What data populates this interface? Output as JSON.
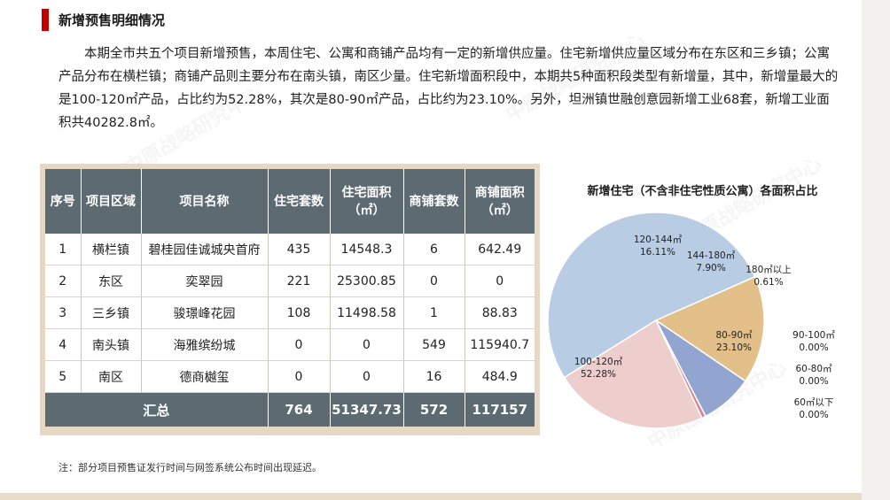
{
  "section": {
    "title": "新增预售明细情况"
  },
  "intro": "本期全市共五个项目新增预售，本周住宅、公寓和商铺产品均有一定的新增供应量。住宅新增供应量区域分布在东区和三乡镇；公寓产品分布在横栏镇；商铺产品则主要分布在南头镇，南区少量。住宅新增面积段中，本期共5种面积段类型有新增量，其中，新增量最大的是100-120㎡产品，占比约为52.28%，其次是80-90㎡产品，占比约为23.10%。另外，坦洲镇世融创意园新增工业68套，新增工业面积共40282.8㎡。",
  "table": {
    "headers": [
      "序号",
      "项目区域",
      "项目名称",
      "住宅套数",
      "住宅面积（㎡）",
      "商铺套数",
      "商铺面积（㎡）"
    ],
    "rows": [
      [
        "1",
        "横栏镇",
        "碧桂园佳诚城央首府",
        "435",
        "14548.3",
        "6",
        "642.49"
      ],
      [
        "2",
        "东区",
        "奕翠园",
        "221",
        "25300.85",
        "0",
        "0"
      ],
      [
        "3",
        "三乡镇",
        "骏璟峰花园",
        "108",
        "11498.58",
        "1",
        "88.83"
      ],
      [
        "4",
        "南头镇",
        "海雅缤纷城",
        "0",
        "0",
        "549",
        "115940.7"
      ],
      [
        "5",
        "南区",
        "德商樾玺",
        "0",
        "0",
        "16",
        "484.9"
      ]
    ],
    "total": {
      "label": "汇总",
      "residential_units": "764",
      "residential_area": "51347.73",
      "shop_units": "572",
      "shop_area": "117157"
    }
  },
  "note": "注：部分项目预售证发行时间与网签系统公布时间出现延迟。",
  "watermark": "中原战略研究中心",
  "chart_data": {
    "type": "pie",
    "title": "新增住宅（不含非住宅性质公寓）各面积占比",
    "slices": [
      {
        "label": "100-120㎡",
        "value": 52.28,
        "display": "52.28%",
        "color": "#b8cce4"
      },
      {
        "label": "120-144㎡",
        "value": 16.11,
        "display": "16.11%",
        "color": "#e3c08a"
      },
      {
        "label": "144-180㎡",
        "value": 7.9,
        "display": "7.90%",
        "color": "#92a5d0"
      },
      {
        "label": "180㎡以上",
        "value": 0.61,
        "display": "0.61%",
        "color": "#d7878f"
      },
      {
        "label": "80-90㎡",
        "value": 23.1,
        "display": "23.10%",
        "color": "#eecdcd"
      },
      {
        "label": "90-100㎡",
        "value": 0.0,
        "display": "0.00%",
        "color": "#c7d6b4"
      },
      {
        "label": "60-80㎡",
        "value": 0.0,
        "display": "0.00%",
        "color": "#c9b6d6"
      },
      {
        "label": "60㎡以下",
        "value": 0.0,
        "display": "0.00%",
        "color": "#a8d2dc"
      }
    ]
  }
}
